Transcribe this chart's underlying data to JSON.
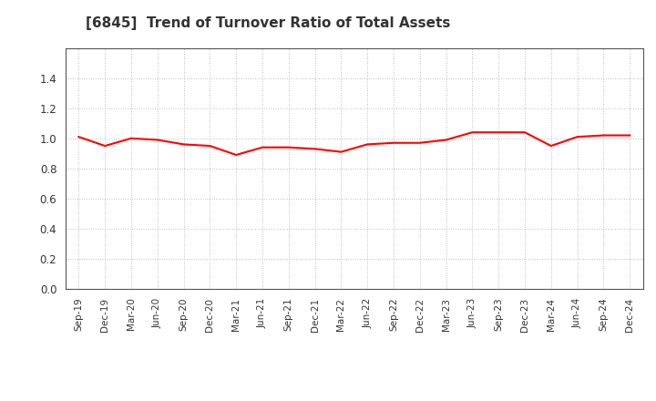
{
  "title": "[6845]  Trend of Turnover Ratio of Total Assets",
  "title_fontsize": 11,
  "title_color": "#333333",
  "line_color": "#FF0000",
  "line_width": 1.5,
  "background_color": "#FFFFFF",
  "grid_color": "#AAAAAA",
  "ylim": [
    0.0,
    1.6
  ],
  "yticks": [
    0.0,
    0.2,
    0.4,
    0.6,
    0.8,
    1.0,
    1.2,
    1.4
  ],
  "labels": [
    "Sep-19",
    "Dec-19",
    "Mar-20",
    "Jun-20",
    "Sep-20",
    "Dec-20",
    "Mar-21",
    "Jun-21",
    "Sep-21",
    "Dec-21",
    "Mar-22",
    "Jun-22",
    "Sep-22",
    "Dec-22",
    "Mar-23",
    "Jun-23",
    "Sep-23",
    "Dec-23",
    "Mar-24",
    "Jun-24",
    "Sep-24",
    "Dec-24"
  ],
  "values": [
    1.01,
    0.95,
    1.0,
    0.99,
    0.96,
    0.95,
    0.89,
    0.94,
    0.94,
    0.93,
    0.91,
    0.96,
    0.97,
    0.97,
    0.99,
    1.04,
    1.04,
    1.04,
    0.95,
    1.01,
    1.02,
    1.02
  ]
}
